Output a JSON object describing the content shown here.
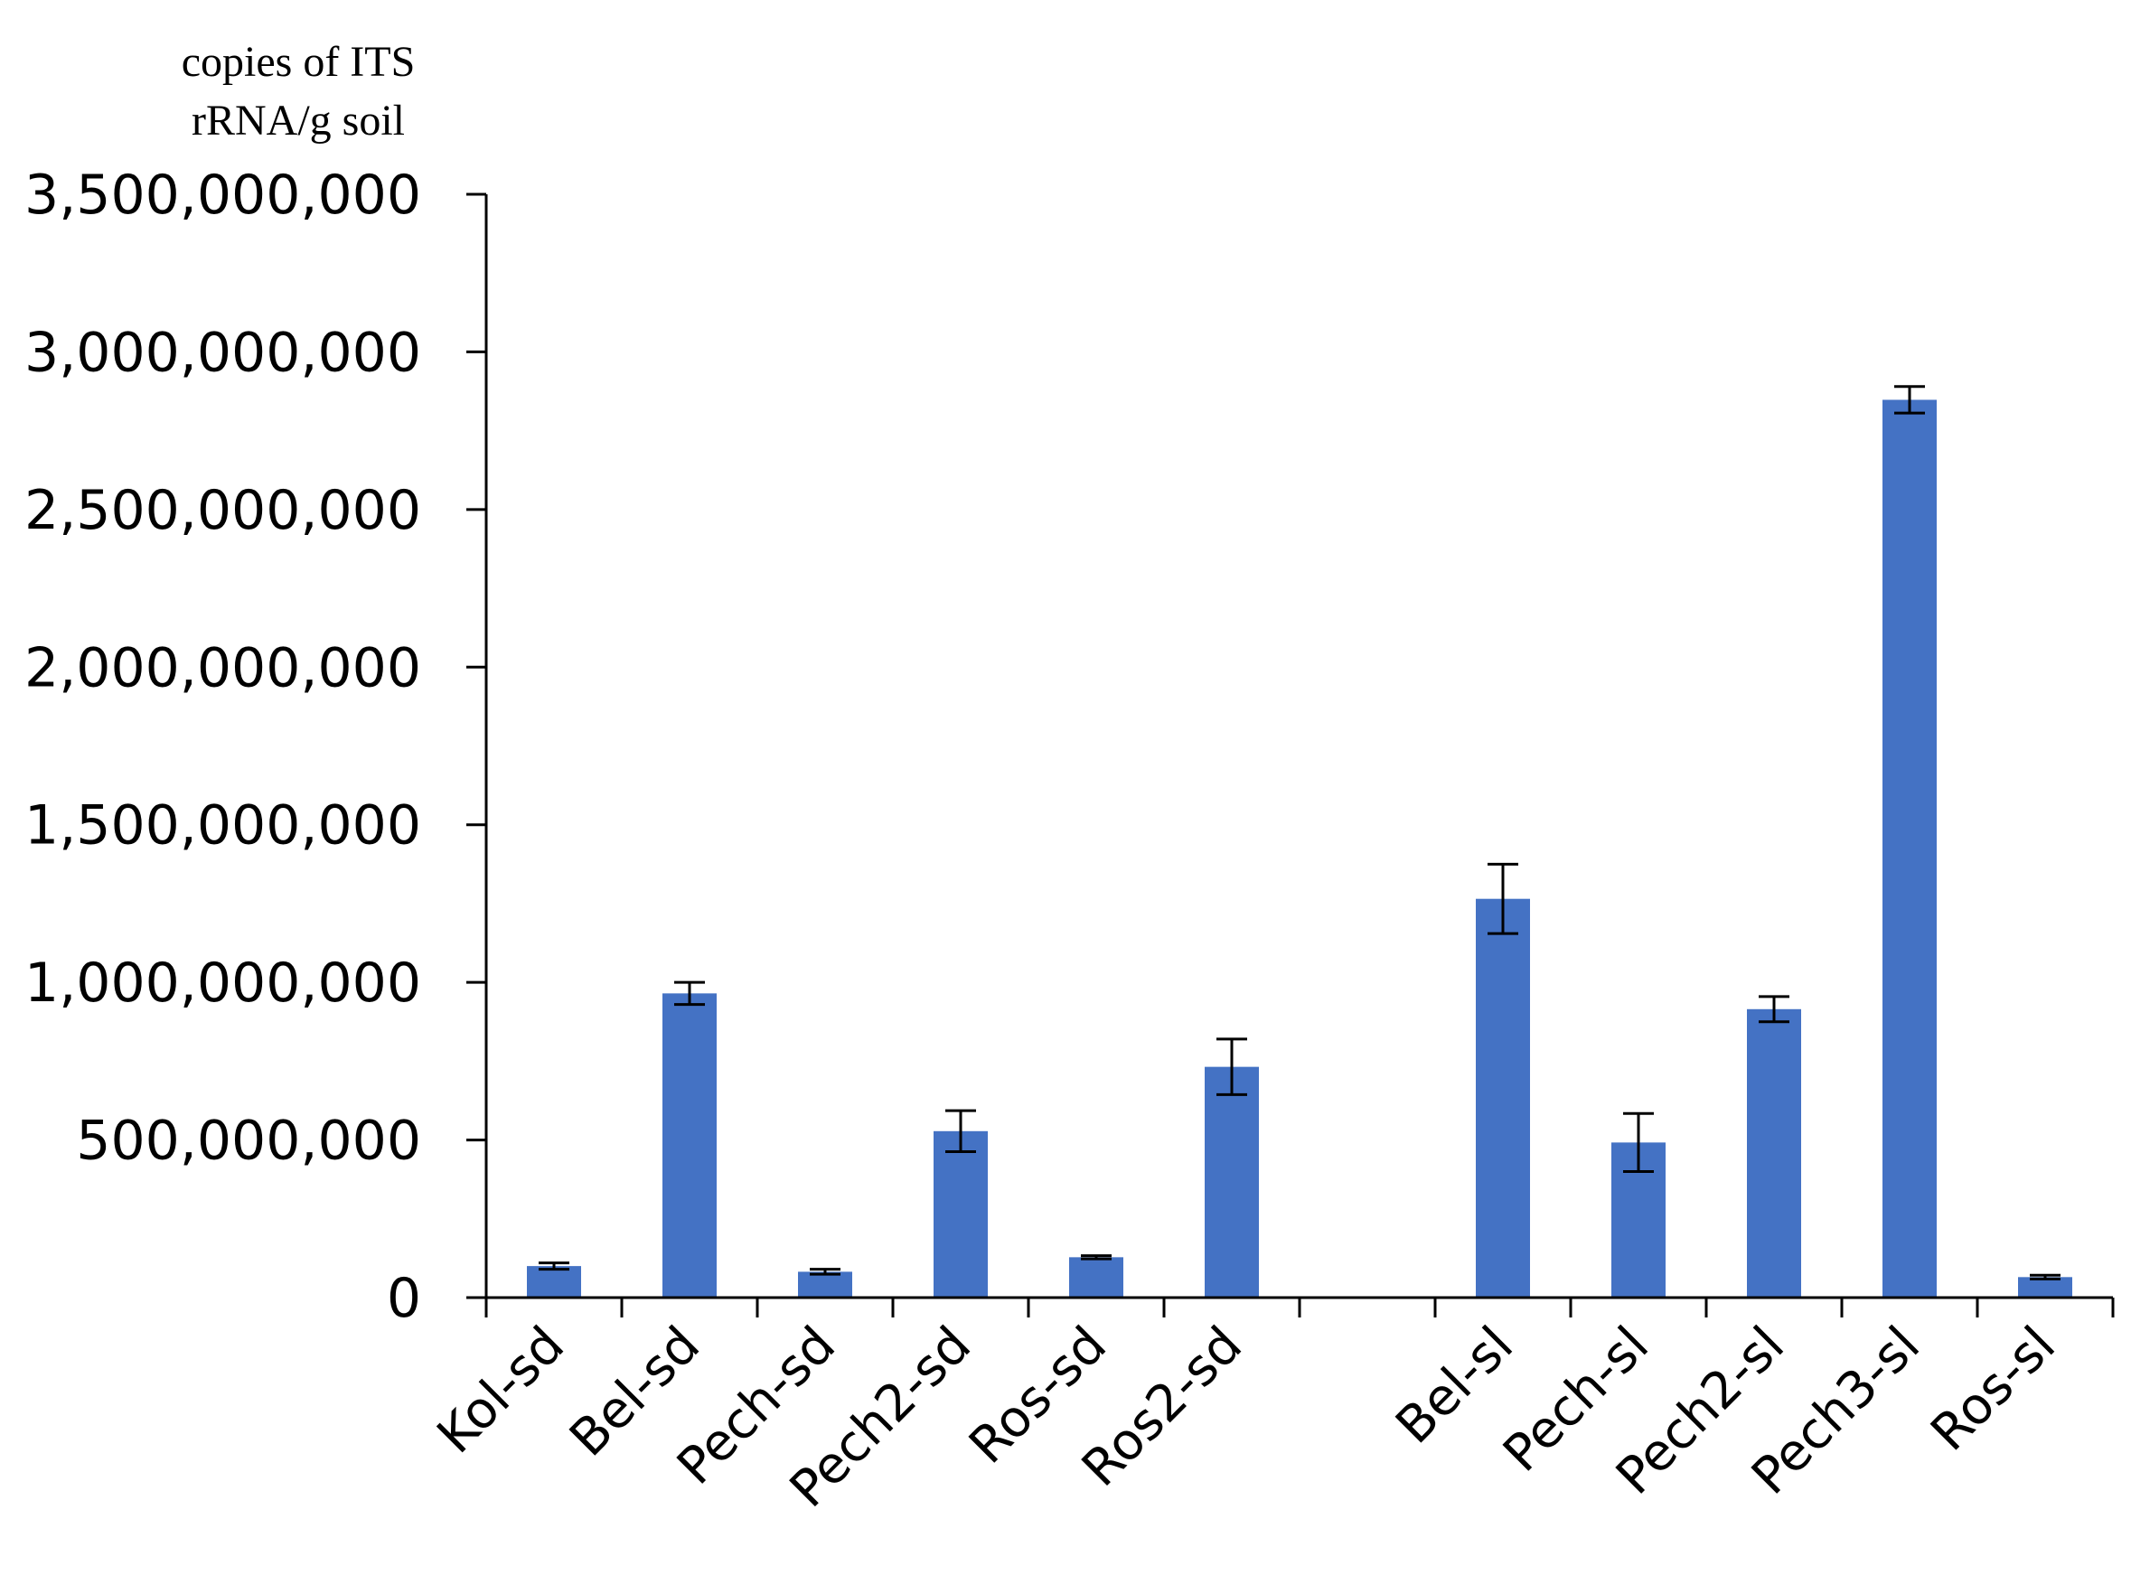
{
  "chart_data": {
    "type": "bar",
    "title": "",
    "xlabel": "",
    "ylabel_lines": [
      "copies of ITS",
      "rRNA/g soil"
    ],
    "ylim": [
      0,
      3500000000
    ],
    "yticks": [
      "3,500,000,000",
      "3,000,000,000",
      "2,500,000,000",
      "2,000,000,000",
      "1,500,000,000",
      "1,000,000,000",
      "500,000,000",
      "0"
    ],
    "ytick_values": [
      3500000000,
      3000000000,
      2500000000,
      2000000000,
      1500000000,
      1000000000,
      500000000,
      0
    ],
    "categories": [
      "Kol-sd",
      "Bel-sd",
      "Pech-sd",
      "Pech2-sd",
      "Ros-sd",
      "Ros2-sd",
      "",
      "Bel-sl",
      "Pech-sl",
      "Pech2-sl",
      "Pech3-sl",
      "Ros-sl"
    ],
    "values": [
      100000000,
      965000000,
      82000000,
      528000000,
      128000000,
      732000000,
      null,
      1265000000,
      492000000,
      915000000,
      2848000000,
      65000000
    ],
    "error": [
      10000000,
      35000000,
      8000000,
      65000000,
      5000000,
      88000000,
      null,
      110000000,
      92000000,
      40000000,
      42000000,
      6000000
    ],
    "bar_color": "#4472C4",
    "grid": false,
    "legend": "none"
  }
}
